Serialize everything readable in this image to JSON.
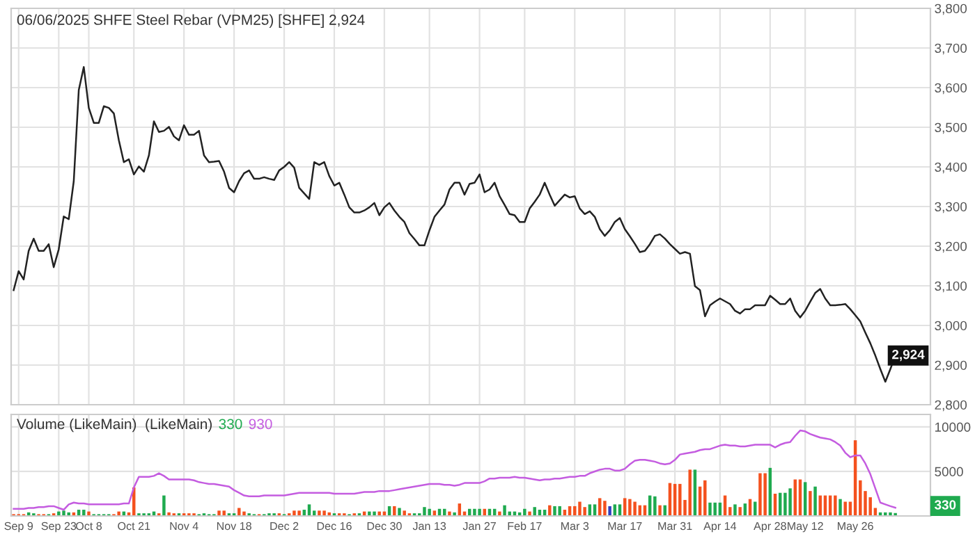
{
  "chart_data": [
    {
      "type": "line",
      "title": "06/06/2025 SHFE Steel Rebar (VPM25) [SHFE] 2,924",
      "categories": [
        null,
        null,
        null,
        null,
        null,
        null,
        null,
        null,
        null,
        null,
        null,
        null,
        null,
        null,
        null,
        null,
        null,
        null,
        null,
        null,
        null,
        null,
        null,
        null,
        null,
        null,
        null,
        null,
        null,
        null,
        null,
        null,
        null,
        null,
        null,
        null,
        null,
        null,
        null,
        null,
        null,
        null,
        null,
        null,
        null,
        null,
        null,
        null,
        null,
        null,
        null,
        null,
        null,
        null,
        null,
        null,
        null,
        null,
        null,
        null,
        null,
        null,
        null,
        null,
        null,
        null,
        null,
        null,
        null,
        null,
        null,
        null,
        null,
        null,
        null,
        null,
        null,
        null,
        null,
        null,
        null,
        null,
        null,
        null,
        null,
        null,
        null,
        null,
        null,
        null,
        null,
        null,
        null,
        null,
        null,
        null,
        null,
        null,
        null,
        null,
        null,
        null,
        null,
        null,
        null,
        null,
        null,
        null,
        null,
        null,
        null,
        null,
        null,
        null,
        null,
        null,
        null,
        null,
        null,
        null,
        null,
        null,
        null,
        null,
        null,
        null,
        null,
        null,
        null,
        null,
        null,
        null,
        null,
        null,
        null,
        null,
        null,
        null,
        null,
        null,
        null,
        null,
        null,
        null,
        null,
        null,
        null,
        null,
        null,
        null,
        null,
        null,
        null,
        null,
        null,
        null,
        null,
        null,
        null,
        null,
        null,
        null,
        null,
        null,
        null,
        null,
        null,
        null,
        null,
        null,
        null,
        null,
        null,
        null,
        null,
        null,
        null
      ],
      "series": [
        {
          "color": "#222222",
          "values": [
            3089,
            3137,
            3116,
            3188,
            3219,
            3188,
            3188,
            3205,
            3147,
            3192,
            3275,
            3268,
            3364,
            3594,
            3652,
            3549,
            3511,
            3511,
            3553,
            3549,
            3535,
            3467,
            3412,
            3419,
            3381,
            3401,
            3388,
            3429,
            3515,
            3488,
            3491,
            3501,
            3477,
            3467,
            3505,
            3481,
            3481,
            3491,
            3429,
            3412,
            3413,
            3415,
            3388,
            3347,
            3336,
            3364,
            3384,
            3391,
            3370,
            3370,
            3374,
            3370,
            3367,
            3391,
            3400,
            3412,
            3398,
            3347,
            3333,
            3319,
            3412,
            3405,
            3412,
            3377,
            3353,
            3360,
            3330,
            3298,
            3285,
            3285,
            3290,
            3298,
            3309,
            3278,
            3298,
            3309,
            3290,
            3274,
            3261,
            3233,
            3218,
            3202,
            3202,
            3240,
            3274,
            3290,
            3305,
            3343,
            3360,
            3360,
            3330,
            3357,
            3360,
            3381,
            3336,
            3343,
            3360,
            3326,
            3304,
            3281,
            3278,
            3261,
            3261,
            3295,
            3312,
            3330,
            3360,
            3330,
            3302,
            3316,
            3330,
            3323,
            3326,
            3295,
            3281,
            3288,
            3274,
            3243,
            3226,
            3240,
            3261,
            3271,
            3243,
            3225,
            3206,
            3185,
            3188,
            3205,
            3226,
            3230,
            3219,
            3205,
            3193,
            3181,
            3185,
            3181,
            3099,
            3089,
            3023,
            3051,
            3060,
            3068,
            3061,
            3054,
            3037,
            3030,
            3041,
            3041,
            3051,
            3051,
            3051,
            3075,
            3065,
            3054,
            3054,
            3068,
            3037,
            3020,
            3037,
            3060,
            3082,
            3092,
            3068,
            3051,
            3051,
            3052,
            3054,
            3041,
            3026,
            3010,
            2982,
            2955,
            2924,
            2890,
            2858,
            2890,
            2924
          ]
        }
      ],
      "ylim": [
        2800,
        3800
      ],
      "yticks": [
        {
          "value": 2800,
          "label": "2,800"
        },
        {
          "value": 2900,
          "label": "2,900"
        },
        {
          "value": 3000,
          "label": "3,000"
        },
        {
          "value": 3100,
          "label": "3,100"
        },
        {
          "value": 3200,
          "label": "3,200"
        },
        {
          "value": 3300,
          "label": "3,300"
        },
        {
          "value": 3400,
          "label": "3,400"
        },
        {
          "value": 3500,
          "label": "3,500"
        },
        {
          "value": 3600,
          "label": "3,600"
        },
        {
          "value": 3700,
          "label": "3,700"
        },
        {
          "value": 3800,
          "label": "3,800"
        }
      ],
      "grid": true,
      "tick_labels": "y",
      "annotations": [
        {
          "text": "2,924",
          "y": 2924
        }
      ]
    },
    {
      "type": "bar",
      "title": "Volume (LikeMain)  (LikeMain)",
      "categories": [
        null,
        "Sep 9",
        null,
        null,
        null,
        null,
        null,
        null,
        null,
        "Sep 23",
        null,
        null,
        null,
        null,
        null,
        "Oct 8",
        null,
        null,
        null,
        null,
        null,
        null,
        null,
        null,
        "Oct 21",
        null,
        null,
        null,
        null,
        null,
        null,
        null,
        null,
        null,
        "Nov 4",
        null,
        null,
        null,
        null,
        null,
        null,
        null,
        null,
        null,
        "Nov 18",
        null,
        null,
        null,
        null,
        null,
        null,
        null,
        null,
        null,
        "Dec 2",
        null,
        null,
        null,
        null,
        null,
        null,
        null,
        null,
        null,
        "Dec 16",
        null,
        null,
        null,
        null,
        null,
        null,
        null,
        null,
        null,
        "Dec 30",
        null,
        null,
        null,
        null,
        null,
        null,
        null,
        null,
        "Jan 13",
        null,
        null,
        null,
        null,
        null,
        null,
        null,
        null,
        null,
        "Jan 27",
        null,
        null,
        null,
        null,
        null,
        null,
        null,
        null,
        "Feb 17",
        null,
        null,
        null,
        null,
        null,
        null,
        null,
        null,
        null,
        "Mar 3",
        null,
        null,
        null,
        null,
        null,
        null,
        null,
        null,
        null,
        "Mar 17",
        null,
        null,
        null,
        null,
        null,
        null,
        null,
        null,
        null,
        "Mar 31",
        null,
        null,
        null,
        null,
        null,
        null,
        null,
        null,
        "Apr 14",
        null,
        null,
        null,
        null,
        null,
        null,
        null,
        null,
        null,
        "Apr 28",
        null,
        null,
        null,
        null,
        null,
        null,
        "May 12",
        null,
        null,
        null,
        null,
        null,
        null,
        null,
        null,
        null,
        "May 26",
        null,
        null,
        null,
        null,
        null,
        null,
        null,
        null
      ],
      "series": [
        {
          "type": "bar",
          "values": [
            200,
            200,
            200,
            400,
            300,
            200,
            200,
            200,
            300,
            500,
            600,
            400,
            400,
            700,
            700,
            500,
            200,
            200,
            200,
            200,
            200,
            500,
            500,
            400,
            3200,
            300,
            300,
            300,
            500,
            300,
            2300,
            400,
            300,
            300,
            300,
            300,
            300,
            200,
            300,
            200,
            200,
            600,
            600,
            300,
            300,
            900,
            500,
            300,
            200,
            200,
            200,
            300,
            300,
            300,
            200,
            300,
            600,
            600,
            700,
            1300,
            600,
            600,
            600,
            400,
            300,
            300,
            300,
            200,
            300,
            300,
            500,
            500,
            500,
            500,
            500,
            1100,
            1100,
            900,
            600,
            300,
            300,
            300,
            1000,
            800,
            600,
            800,
            800,
            500,
            400,
            1400,
            500,
            800,
            800,
            800,
            800,
            800,
            800,
            500,
            1200,
            500,
            500,
            400,
            800,
            500,
            1000,
            700,
            700,
            1200,
            1100,
            1100,
            700,
            1100,
            1100,
            1600,
            1000,
            1300,
            1300,
            2000,
            1700,
            1100,
            1300,
            1300,
            2000,
            1900,
            1600,
            1200,
            1200,
            2300,
            2200,
            1200,
            1200,
            3700,
            3600,
            3600,
            1800,
            5200,
            5200,
            3300,
            4000,
            1500,
            1500,
            1500,
            2300,
            1000,
            1300,
            1000,
            1400,
            1900,
            1600,
            4800,
            4800,
            5400,
            2500,
            2600,
            2600,
            3100,
            4100,
            4100,
            3800,
            2800,
            3300,
            2300,
            2300,
            2300,
            2300,
            1900,
            1600,
            1600,
            8500,
            4000,
            2800,
            2100,
            900,
            400,
            400,
            400,
            330
          ],
          "colors": [
            "#f4511e",
            "#f4511e",
            "#f4511e",
            "#1faa4f",
            "#1faa4f",
            "#f4511e",
            "#f4511e",
            "#1faa4f",
            "#f4511e",
            "#1faa4f",
            "#1faa4f",
            "#1faa4f",
            "#f4511e",
            "#1faa4f",
            "#1faa4f",
            "#f4511e",
            "#1faa4f",
            "#1faa4f",
            "#1faa4f",
            "#1faa4f",
            "#f4511e",
            "#f4511e",
            "#1faa4f",
            "#f4511e",
            "#f4511e",
            "#1faa4f",
            "#1faa4f",
            "#1faa4f",
            "#1faa4f",
            "#f4511e",
            "#1faa4f",
            "#f4511e",
            "#f4511e",
            "#1faa4f",
            "#f4511e",
            "#f4511e",
            "#f4511e",
            "#1faa4f",
            "#1faa4f",
            "#1faa4f",
            "#1faa4f",
            "#f4511e",
            "#f4511e",
            "#1faa4f",
            "#1faa4f",
            "#f4511e",
            "#f4511e",
            "#1faa4f",
            "#1faa4f",
            "#f4511e",
            "#1faa4f",
            "#1faa4f",
            "#1faa4f",
            "#f4511e",
            "#1faa4f",
            "#f4511e",
            "#f4511e",
            "#f4511e",
            "#1faa4f",
            "#1faa4f",
            "#1faa4f",
            "#f4511e",
            "#f4511e",
            "#f4511e",
            "#1faa4f",
            "#f4511e",
            "#f4511e",
            "#1faa4f",
            "#f4511e",
            "#1faa4f",
            "#f4511e",
            "#1faa4f",
            "#1faa4f",
            "#f4511e",
            "#f4511e",
            "#1faa4f",
            "#f4511e",
            "#1faa4f",
            "#f4511e",
            "#f4511e",
            "#1faa4f",
            "#1faa4f",
            "#1faa4f",
            "#1faa4f",
            "#f4511e",
            "#1faa4f",
            "#1faa4f",
            "#f4511e",
            "#1faa4f",
            "#f4511e",
            "#f4511e",
            "#1faa4f",
            "#1faa4f",
            "#1faa4f",
            "#f4511e",
            "#1faa4f",
            "#1faa4f",
            "#f4511e",
            "#1faa4f",
            "#1faa4f",
            "#1faa4f",
            "#1faa4f",
            "#1faa4f",
            "#f4511e",
            "#1faa4f",
            "#1faa4f",
            "#1faa4f",
            "#f4511e",
            "#1faa4f",
            "#1faa4f",
            "#f4511e",
            "#f4511e",
            "#f4511e",
            "#f4511e",
            "#f4511e",
            "#1faa4f",
            "#1faa4f",
            "#f4511e",
            "#f4511e",
            "#2e3fbf",
            "#1faa4f",
            "#1faa4f",
            "#f4511e",
            "#f4511e",
            "#f4511e",
            "#f4511e",
            "#f4511e",
            "#1faa4f",
            "#1faa4f",
            "#f4511e",
            "#1faa4f",
            "#f4511e",
            "#f4511e",
            "#f4511e",
            "#f4511e",
            "#f4511e",
            "#1faa4f",
            "#f4511e",
            "#f4511e",
            "#1faa4f",
            "#1faa4f",
            "#1faa4f",
            "#f4511e",
            "#f4511e",
            "#1faa4f",
            "#f4511e",
            "#1faa4f",
            "#f4511e",
            "#1faa4f",
            "#f4511e",
            "#f4511e",
            "#1faa4f",
            "#f4511e",
            "#1faa4f",
            "#1faa4f",
            "#1faa4f",
            "#f4511e",
            "#f4511e",
            "#1faa4f",
            "#f4511e",
            "#1faa4f",
            "#f4511e",
            "#f4511e",
            "#f4511e",
            "#f4511e",
            "#1faa4f",
            "#f4511e",
            "#f4511e",
            "#f4511e",
            "#f4511e",
            "#f4511e",
            "#f4511e",
            "#f4511e",
            "#1faa4f",
            "#1faa4f",
            "#1faa4f",
            "#1faa4f"
          ]
        },
        {
          "type": "line",
          "color": "#c45ce0",
          "values": [
            800,
            800,
            800,
            900,
            900,
            1000,
            1000,
            1100,
            1100,
            900,
            700,
            1300,
            1500,
            1400,
            1400,
            1300,
            1300,
            1300,
            1300,
            1300,
            1300,
            1300,
            1400,
            1400,
            3200,
            4400,
            4400,
            4400,
            4500,
            4800,
            4500,
            4100,
            4100,
            4100,
            4100,
            4100,
            4000,
            3800,
            3700,
            3600,
            3600,
            3500,
            3400,
            3300,
            2900,
            2600,
            2300,
            2200,
            2200,
            2200,
            2300,
            2300,
            2300,
            2300,
            2300,
            2400,
            2500,
            2600,
            2600,
            2600,
            2600,
            2600,
            2600,
            2600,
            2500,
            2500,
            2500,
            2500,
            2500,
            2600,
            2700,
            2700,
            2700,
            2800,
            2800,
            2800,
            2900,
            3000,
            3100,
            3200,
            3300,
            3400,
            3500,
            3600,
            3600,
            3600,
            3500,
            3500,
            3400,
            3500,
            3700,
            3700,
            3700,
            3700,
            3900,
            4200,
            4200,
            4300,
            4300,
            4300,
            4400,
            4300,
            4300,
            4200,
            4100,
            4000,
            4100,
            4100,
            4200,
            4200,
            4300,
            4400,
            4400,
            4500,
            4500,
            4800,
            5000,
            5200,
            5300,
            5300,
            5100,
            5100,
            5300,
            5800,
            6200,
            6300,
            6300,
            6200,
            6100,
            5900,
            5800,
            5900,
            6300,
            6900,
            7000,
            7100,
            7200,
            7400,
            7500,
            7500,
            7700,
            7900,
            8000,
            7900,
            7900,
            7800,
            7800,
            7900,
            8000,
            8000,
            8000,
            8000,
            7700,
            8000,
            8200,
            8300,
            9000,
            9600,
            9500,
            9200,
            9000,
            8800,
            8700,
            8600,
            8300,
            7900,
            7100,
            6600,
            6800,
            6800,
            5900,
            4700,
            3100,
            1500,
            1300,
            1100,
            930
          ]
        }
      ],
      "ylim": [
        0,
        11400
      ],
      "yticks": [
        5000,
        10000
      ],
      "grid": true,
      "annotations": [
        "330",
        "930",
        "330"
      ]
    }
  ]
}
